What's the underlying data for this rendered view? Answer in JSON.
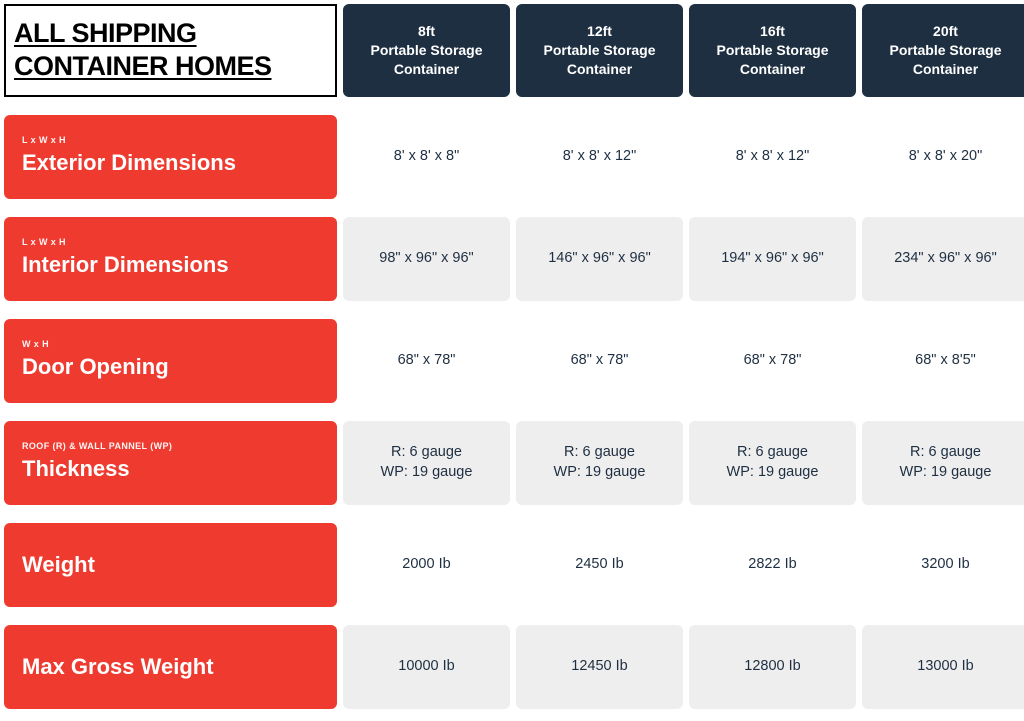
{
  "colors": {
    "header_bg": "#1e2f41",
    "row_label_bg": "#ee3a2f",
    "cell_bg": "#eeeeee",
    "cell_alt_bg": "#ffffff",
    "text_dark": "#1e2f41"
  },
  "title": "ALL SHIPPING CONTAINER HOMES",
  "columns": [
    {
      "size": "8ft",
      "label": "Portable Storage Container"
    },
    {
      "size": "12ft",
      "label": "Portable Storage Container"
    },
    {
      "size": "16ft",
      "label": "Portable Storage Container"
    },
    {
      "size": "20ft",
      "label": "Portable Storage Container"
    }
  ],
  "rows": [
    {
      "sup": "L x W x H",
      "label": "Exterior Dimensions",
      "alt": true,
      "values": [
        "8' x 8' x 8\"",
        "8' x 8' x 12\"",
        "8' x 8' x 12\"",
        "8' x 8' x 20\""
      ]
    },
    {
      "sup": "L x W x H",
      "label": "Interior Dimensions",
      "alt": false,
      "values": [
        "98\" x 96\" x 96\"",
        "146\" x 96\" x 96\"",
        "194\" x 96\" x 96\"",
        "234\" x 96\" x 96\""
      ]
    },
    {
      "sup": "W x H",
      "label": "Door Opening",
      "alt": true,
      "values": [
        "68\" x 78\"",
        "68\" x 78\"",
        "68\" x 78\"",
        "68\" x 8'5\""
      ]
    },
    {
      "sup": "ROOF (R) & WALL PANNEL (WP)",
      "label": "Thickness",
      "alt": false,
      "values": [
        "R: 6 gauge\nWP: 19 gauge",
        "R: 6 gauge\nWP: 19 gauge",
        "R: 6 gauge\nWP: 19 gauge",
        "R: 6 gauge\nWP: 19 gauge"
      ]
    },
    {
      "sup": "",
      "label": "Weight",
      "alt": true,
      "values": [
        "2000 Ib",
        "2450 Ib",
        "2822 Ib",
        "3200 Ib"
      ]
    },
    {
      "sup": "",
      "label": "Max Gross Weight",
      "alt": false,
      "values": [
        "10000 Ib",
        "12450 Ib",
        "12800 Ib",
        "13000 Ib"
      ]
    }
  ]
}
